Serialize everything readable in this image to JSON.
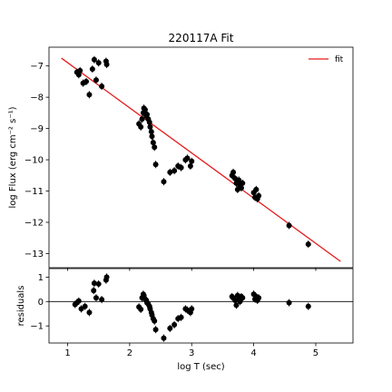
{
  "chart_data": [
    {
      "type": "scatter",
      "title": "220117A Fit",
      "ylabel": "log Flux (erg cm⁻² s⁻¹)",
      "xlim": [
        0.7,
        5.6
      ],
      "ylim": [
        -13.45,
        -6.4
      ],
      "xticks": [
        1,
        2,
        3,
        4,
        5
      ],
      "yticks": [
        -13,
        -12,
        -11,
        -10,
        -9,
        -8,
        -7
      ],
      "legend": {
        "position": "top-right",
        "entries": [
          "fit"
        ]
      },
      "colors": {
        "data": "#000000",
        "fit": "#e41a1c"
      },
      "fit_line": {
        "name": "fit",
        "x": [
          0.9,
          5.4
        ],
        "y": [
          -6.75,
          -13.25
        ]
      },
      "points": [
        [
          1.15,
          -7.2
        ],
        [
          1.18,
          -7.28
        ],
        [
          1.2,
          -7.15
        ],
        [
          1.25,
          -7.55
        ],
        [
          1.3,
          -7.5
        ],
        [
          1.35,
          -7.92
        ],
        [
          1.4,
          -7.1
        ],
        [
          1.43,
          -6.8
        ],
        [
          1.46,
          -7.45
        ],
        [
          1.5,
          -6.9
        ],
        [
          1.55,
          -7.65
        ],
        [
          1.62,
          -6.85
        ],
        [
          1.63,
          -6.95
        ],
        [
          2.15,
          -8.85
        ],
        [
          2.18,
          -8.95
        ],
        [
          2.2,
          -8.7
        ],
        [
          2.22,
          -8.5
        ],
        [
          2.23,
          -8.35
        ],
        [
          2.25,
          -8.4
        ],
        [
          2.27,
          -8.6
        ],
        [
          2.28,
          -8.55
        ],
        [
          2.3,
          -8.7
        ],
        [
          2.32,
          -8.8
        ],
        [
          2.33,
          -8.95
        ],
        [
          2.35,
          -9.1
        ],
        [
          2.36,
          -9.25
        ],
        [
          2.38,
          -9.45
        ],
        [
          2.4,
          -9.6
        ],
        [
          2.42,
          -10.15
        ],
        [
          2.55,
          -10.7
        ],
        [
          2.65,
          -10.4
        ],
        [
          2.72,
          -10.35
        ],
        [
          2.78,
          -10.2
        ],
        [
          2.83,
          -10.25
        ],
        [
          2.9,
          -10.0
        ],
        [
          2.93,
          -9.95
        ],
        [
          2.98,
          -10.2
        ],
        [
          3.0,
          -10.05
        ],
        [
          3.65,
          -10.5
        ],
        [
          3.67,
          -10.4
        ],
        [
          3.7,
          -10.6
        ],
        [
          3.72,
          -10.75
        ],
        [
          3.74,
          -10.95
        ],
        [
          3.76,
          -10.65
        ],
        [
          3.78,
          -10.8
        ],
        [
          3.8,
          -10.9
        ],
        [
          3.82,
          -10.75
        ],
        [
          4.0,
          -11.05
        ],
        [
          4.02,
          -11.2
        ],
        [
          4.04,
          -10.95
        ],
        [
          4.06,
          -11.25
        ],
        [
          4.08,
          -11.15
        ],
        [
          4.57,
          -12.1
        ],
        [
          4.88,
          -12.7
        ]
      ]
    },
    {
      "type": "scatter",
      "xlabel": "log T (sec)",
      "ylabel": "residuals",
      "xlim": [
        0.7,
        5.6
      ],
      "ylim": [
        -1.7,
        1.35
      ],
      "xticks": [
        1,
        2,
        3,
        4,
        5
      ],
      "yticks": [
        -1,
        0,
        1
      ],
      "reference_line": 0,
      "points": [
        [
          1.12,
          -0.12
        ],
        [
          1.15,
          -0.05
        ],
        [
          1.18,
          0.02
        ],
        [
          1.22,
          -0.3
        ],
        [
          1.28,
          -0.2
        ],
        [
          1.35,
          -0.45
        ],
        [
          1.42,
          0.45
        ],
        [
          1.43,
          0.75
        ],
        [
          1.46,
          0.15
        ],
        [
          1.5,
          0.72
        ],
        [
          1.55,
          0.08
        ],
        [
          1.62,
          0.88
        ],
        [
          1.63,
          1.0
        ],
        [
          2.15,
          -0.22
        ],
        [
          2.18,
          -0.32
        ],
        [
          2.2,
          0.15
        ],
        [
          2.22,
          0.3
        ],
        [
          2.23,
          0.25
        ],
        [
          2.25,
          0.1
        ],
        [
          2.27,
          0.05
        ],
        [
          2.28,
          -0.05
        ],
        [
          2.3,
          -0.1
        ],
        [
          2.32,
          -0.2
        ],
        [
          2.33,
          -0.3
        ],
        [
          2.35,
          -0.45
        ],
        [
          2.36,
          -0.55
        ],
        [
          2.38,
          -0.7
        ],
        [
          2.4,
          -0.8
        ],
        [
          2.42,
          -1.15
        ],
        [
          2.55,
          -1.5
        ],
        [
          2.65,
          -1.1
        ],
        [
          2.72,
          -0.95
        ],
        [
          2.78,
          -0.7
        ],
        [
          2.83,
          -0.65
        ],
        [
          2.9,
          -0.3
        ],
        [
          2.93,
          -0.35
        ],
        [
          2.98,
          -0.45
        ],
        [
          3.0,
          -0.3
        ],
        [
          3.65,
          0.2
        ],
        [
          3.67,
          0.15
        ],
        [
          3.7,
          0.05
        ],
        [
          3.72,
          -0.15
        ],
        [
          3.74,
          0.25
        ],
        [
          3.76,
          0.1
        ],
        [
          3.78,
          0.0
        ],
        [
          3.8,
          0.2
        ],
        [
          3.82,
          0.15
        ],
        [
          4.0,
          0.3
        ],
        [
          4.02,
          0.1
        ],
        [
          4.04,
          0.2
        ],
        [
          4.06,
          0.05
        ],
        [
          4.08,
          0.15
        ],
        [
          4.57,
          -0.05
        ],
        [
          4.88,
          -0.2
        ]
      ]
    }
  ]
}
